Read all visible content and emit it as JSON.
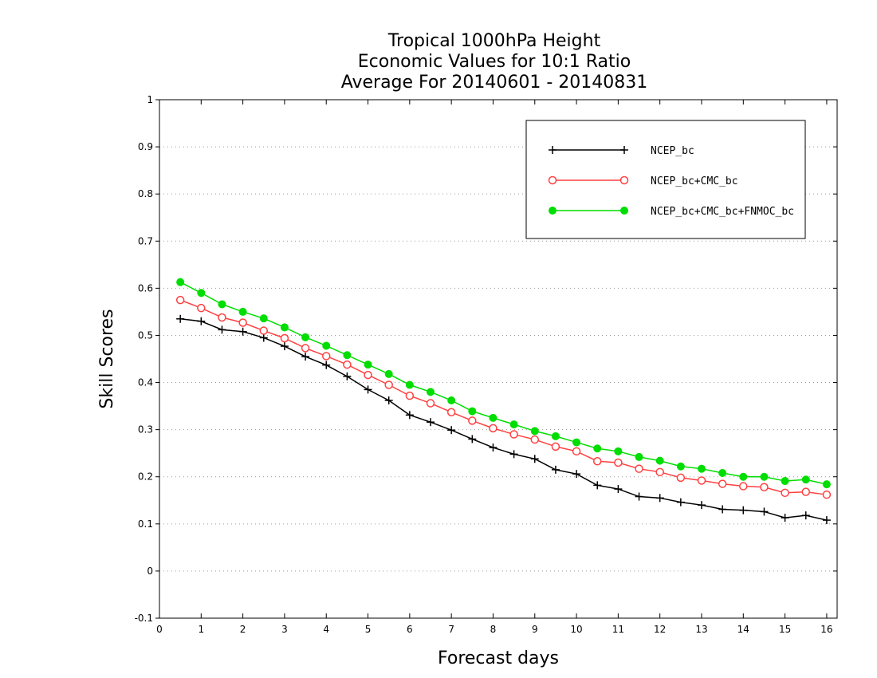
{
  "chart_data": {
    "type": "line",
    "title_lines": [
      "Tropical 1000hPa Height",
      "Economic Values for 10:1 Ratio",
      "Average For 20140601 - 20140831"
    ],
    "xlabel": "Forecast days",
    "ylabel": "Skill Scores",
    "xlim": [
      0,
      16.25
    ],
    "ylim": [
      -0.1,
      1
    ],
    "xticks": [
      0,
      1,
      2,
      3,
      4,
      5,
      6,
      7,
      8,
      9,
      10,
      11,
      12,
      13,
      14,
      15,
      16
    ],
    "yticks": [
      -0.1,
      0,
      0.1,
      0.2,
      0.3,
      0.4,
      0.5,
      0.6,
      0.7,
      0.8,
      0.9,
      1
    ],
    "ytick_labels": [
      "-0.1",
      "0",
      "0.1",
      "0.2",
      "0.3",
      "0.4",
      "0.5",
      "0.6",
      "0.7",
      "0.8",
      "0.9",
      "1"
    ],
    "grid": "horizontal-dotted",
    "legend_position": "top-right",
    "x": [
      0.5,
      1,
      1.5,
      2,
      2.5,
      3,
      3.5,
      4,
      4.5,
      5,
      5.5,
      6,
      6.5,
      7,
      7.5,
      8,
      8.5,
      9,
      9.5,
      10,
      10.5,
      11,
      11.5,
      12,
      12.5,
      13,
      13.5,
      14,
      14.5,
      15,
      15.5,
      16
    ],
    "series": [
      {
        "name": "NCEP_bc",
        "color": "#000000",
        "marker": "plus",
        "values": [
          0.535,
          0.53,
          0.512,
          0.508,
          0.495,
          0.477,
          0.455,
          0.437,
          0.413,
          0.385,
          0.362,
          0.331,
          0.316,
          0.299,
          0.28,
          0.262,
          0.248,
          0.238,
          0.215,
          0.206,
          0.182,
          0.174,
          0.158,
          0.155,
          0.146,
          0.14,
          0.131,
          0.129,
          0.126,
          0.113,
          0.118,
          0.108
        ]
      },
      {
        "name": "NCEP_bc+CMC_bc",
        "color": "#ff4040",
        "marker": "open-circle",
        "values": [
          0.575,
          0.558,
          0.538,
          0.527,
          0.51,
          0.494,
          0.473,
          0.456,
          0.438,
          0.416,
          0.395,
          0.372,
          0.356,
          0.337,
          0.319,
          0.303,
          0.29,
          0.279,
          0.264,
          0.254,
          0.233,
          0.23,
          0.217,
          0.21,
          0.198,
          0.192,
          0.185,
          0.18,
          0.178,
          0.166,
          0.168,
          0.162
        ]
      },
      {
        "name": "NCEP_bc+CMC_bc+FNMOC_bc",
        "color": "#00dd00",
        "marker": "filled-circle",
        "values": [
          0.613,
          0.59,
          0.566,
          0.55,
          0.536,
          0.517,
          0.496,
          0.478,
          0.458,
          0.438,
          0.418,
          0.395,
          0.38,
          0.362,
          0.339,
          0.325,
          0.311,
          0.297,
          0.286,
          0.273,
          0.26,
          0.254,
          0.242,
          0.234,
          0.222,
          0.217,
          0.208,
          0.2,
          0.2,
          0.191,
          0.194,
          0.184
        ]
      }
    ]
  }
}
